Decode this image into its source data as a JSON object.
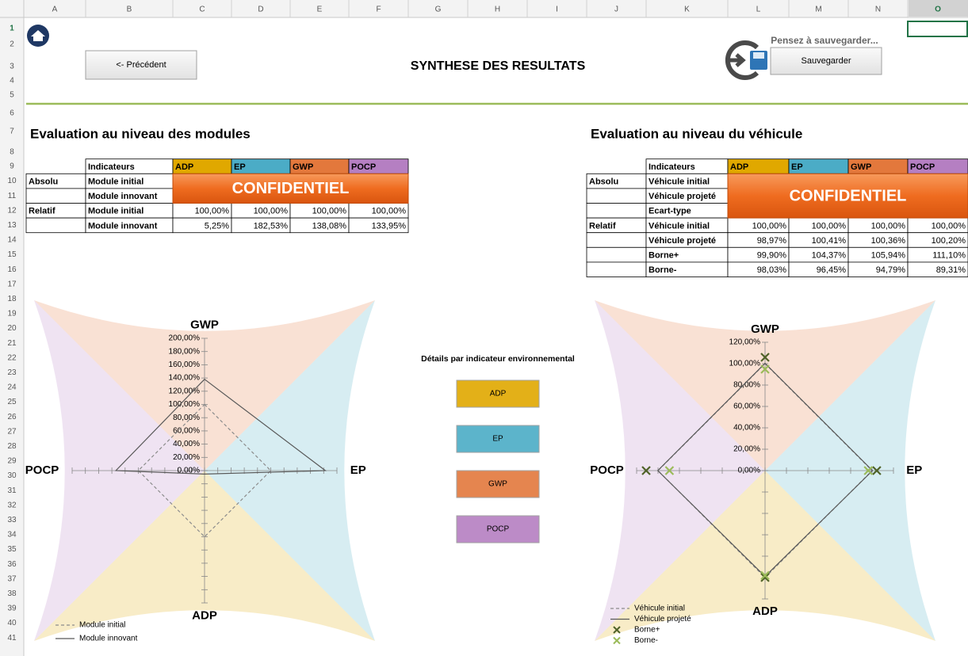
{
  "sheet": {
    "columns": [
      "A",
      "B",
      "C",
      "D",
      "E",
      "F",
      "G",
      "H",
      "I",
      "J",
      "K",
      "L",
      "M",
      "N",
      "O"
    ],
    "rows": [
      1,
      2,
      3,
      4,
      5,
      6,
      7,
      8,
      9,
      10,
      11,
      12,
      13,
      14,
      15,
      16,
      17,
      18,
      19,
      20,
      21,
      22,
      23,
      24,
      25,
      26,
      27,
      28,
      29,
      30,
      31,
      32,
      33,
      34,
      35,
      36,
      37,
      38,
      39,
      40,
      41
    ],
    "selected_column": "O",
    "selected_row": 1
  },
  "header": {
    "back_button": "<- Précédent",
    "title": "SYNTHESE DES RESULTATS",
    "save_hint": "Pensez à sauvegarder...",
    "save_button": "Sauvegarder"
  },
  "indicator_colors": [
    "#e0a800",
    "#4bacc6",
    "#e3783c",
    "#b57fc2"
  ],
  "modules": {
    "heading": "Evaluation au niveau des modules",
    "confidential": "CONFIDENTIEL",
    "columns": [
      "Indicateurs",
      "ADP",
      "EP",
      "GWP",
      "POCP"
    ],
    "rows": [
      {
        "group": "Absolu",
        "label": "Module initial"
      },
      {
        "label": "Module innovant"
      },
      {
        "group": "Relatif",
        "label": "Module initial",
        "cells": [
          "100,00%",
          "100,00%",
          "100,00%",
          "100,00%"
        ]
      },
      {
        "label": "Module innovant",
        "cells": [
          "5,25%",
          "182,53%",
          "138,08%",
          "133,95%"
        ]
      }
    ]
  },
  "vehicle": {
    "heading": "Evaluation au niveau du véhicule",
    "confidential": "CONFIDENTIEL",
    "columns": [
      "Indicateurs",
      "ADP",
      "EP",
      "GWP",
      "POCP"
    ],
    "rows": [
      {
        "group": "Absolu",
        "label": "Véhicule initial"
      },
      {
        "label": "Véhicule projeté"
      },
      {
        "label": "Ecart-type"
      },
      {
        "group": "Relatif",
        "label": "Véhicule initial",
        "cells": [
          "100,00%",
          "100,00%",
          "100,00%",
          "100,00%"
        ]
      },
      {
        "label": "Véhicule projeté",
        "cells": [
          "98,97%",
          "100,41%",
          "100,36%",
          "100,20%"
        ]
      },
      {
        "label": "Borne+",
        "cells": [
          "99,90%",
          "104,37%",
          "105,94%",
          "111,10%"
        ]
      },
      {
        "label": "Borne-",
        "cells": [
          "98,03%",
          "96,45%",
          "94,79%",
          "89,31%"
        ]
      }
    ]
  },
  "details": {
    "title": "Détails par indicateur environnemental",
    "buttons": [
      "ADP",
      "EP",
      "GWP",
      "POCP"
    ]
  },
  "charts": [
    {
      "type": "radar",
      "axes": [
        "GWP",
        "EP",
        "ADP",
        "POCP"
      ],
      "rlim": [
        0,
        200
      ],
      "rticks": [
        {
          "value": 0,
          "label": "0,00%"
        },
        {
          "value": 20,
          "label": "20,00%"
        },
        {
          "value": 40,
          "label": "40,00%"
        },
        {
          "value": 60,
          "label": "60,00%"
        },
        {
          "value": 80,
          "label": "80,00%"
        },
        {
          "value": 100,
          "label": "100,00%"
        },
        {
          "value": 120,
          "label": "120,00%"
        },
        {
          "value": 140,
          "label": "140,00%"
        },
        {
          "value": 160,
          "label": "160,00%"
        },
        {
          "value": 180,
          "label": "180,00%"
        },
        {
          "value": 200,
          "label": "200,00%"
        }
      ],
      "series": [
        {
          "name": "Module initial",
          "color": "#8c8c8c",
          "style": "dashed",
          "values": [
            100,
            100,
            100,
            100
          ]
        },
        {
          "name": "Module innovant",
          "color": "#595959",
          "style": "solid",
          "values": [
            138.08,
            182.53,
            5.25,
            133.95
          ]
        }
      ]
    },
    {
      "type": "radar",
      "axes": [
        "GWP",
        "EP",
        "ADP",
        "POCP"
      ],
      "rlim": [
        0,
        120
      ],
      "rticks": [
        {
          "value": 0,
          "label": "0,00%"
        },
        {
          "value": 20,
          "label": "20,00%"
        },
        {
          "value": 40,
          "label": "40,00%"
        },
        {
          "value": 60,
          "label": "60,00%"
        },
        {
          "value": 80,
          "label": "80,00%"
        },
        {
          "value": 100,
          "label": "100,00%"
        },
        {
          "value": 120,
          "label": "120,00%"
        }
      ],
      "series": [
        {
          "name": "Véhicule initial",
          "color": "#8c8c8c",
          "style": "dashed",
          "values": [
            100,
            100,
            100,
            100
          ]
        },
        {
          "name": "Véhicule projeté",
          "color": "#595959",
          "style": "solid",
          "values": [
            100.36,
            100.41,
            98.97,
            100.2
          ]
        },
        {
          "name": "Borne+",
          "color": "#4f6228",
          "style": "marker",
          "values": [
            105.94,
            104.37,
            99.9,
            111.1
          ]
        },
        {
          "name": "Borne-",
          "color": "#9bbb59",
          "style": "marker",
          "values": [
            94.79,
            96.45,
            98.03,
            89.31
          ]
        }
      ]
    }
  ]
}
